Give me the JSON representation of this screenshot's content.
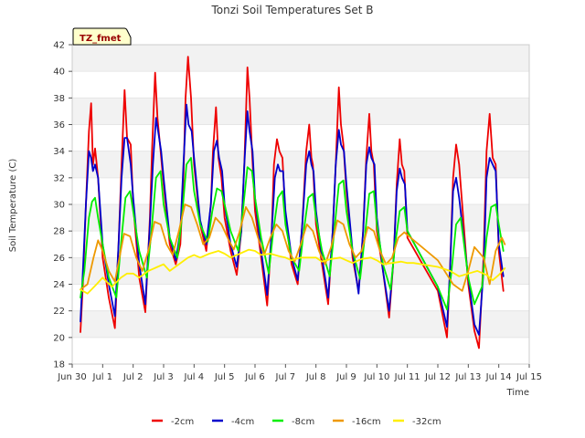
{
  "chart_data": {
    "type": "line",
    "title": "Tonzi Soil Temperatures Set B",
    "xlabel": "Time",
    "ylabel": "Soil Temperature (C)",
    "badge": "TZ_fmet",
    "xlim": [
      0,
      15
    ],
    "ylim": [
      18,
      42
    ],
    "grid": "alternating horizontal bands",
    "legend_position": "bottom",
    "x_tick_values": [
      0,
      1,
      2,
      3,
      4,
      5,
      6,
      7,
      8,
      9,
      10,
      11,
      12,
      13,
      14,
      15
    ],
    "x_tick_labels": [
      "Jun 30",
      "Jul 1",
      "Jul 2",
      "Jul 3",
      "Jul 4",
      "Jul 5",
      "Jul 6",
      "Jul 7",
      "Jul 8",
      "Jul 9",
      "Jul 10",
      "Jul 11",
      "Jul 12",
      "Jul 13",
      "Jul 14",
      "Jul 15"
    ],
    "y_ticks": [
      18,
      20,
      22,
      24,
      26,
      28,
      30,
      32,
      34,
      36,
      38,
      40,
      42
    ],
    "x_note": "x values are days counted from Jun 30 (tick 0)",
    "series": [
      {
        "name": "-2cm",
        "color": "#ee0000",
        "x": [
          0.27,
          0.35,
          0.45,
          0.55,
          0.62,
          0.68,
          0.75,
          0.85,
          1.0,
          1.2,
          1.4,
          1.52,
          1.62,
          1.72,
          1.8,
          1.92,
          2.0,
          2.2,
          2.4,
          2.55,
          2.62,
          2.72,
          2.8,
          2.9,
          3.0,
          3.2,
          3.4,
          3.55,
          3.65,
          3.72,
          3.8,
          3.9,
          4.0,
          4.2,
          4.4,
          4.55,
          4.62,
          4.72,
          4.8,
          4.9,
          5.0,
          5.2,
          5.4,
          5.55,
          5.65,
          5.75,
          5.82,
          5.9,
          6.0,
          6.2,
          6.4,
          6.55,
          6.62,
          6.72,
          6.8,
          6.9,
          7.0,
          7.2,
          7.4,
          7.55,
          7.68,
          7.78,
          7.85,
          7.9,
          8.0,
          8.2,
          8.4,
          8.55,
          8.65,
          8.75,
          8.82,
          8.9,
          9.0,
          9.2,
          9.4,
          9.55,
          9.65,
          9.75,
          9.82,
          9.9,
          10.0,
          10.2,
          10.4,
          10.55,
          10.65,
          10.75,
          10.82,
          10.9,
          11.0,
          12.0,
          12.3,
          12.4,
          12.5,
          12.6,
          12.7,
          13.0,
          13.2,
          13.35,
          13.5,
          13.6,
          13.7,
          13.8,
          13.9,
          14.0,
          14.15
        ],
        "y": [
          20.4,
          24.0,
          30.0,
          35.5,
          37.6,
          33.0,
          34.2,
          32.0,
          26.0,
          23.0,
          20.7,
          27.0,
          33.0,
          38.6,
          35.0,
          34.5,
          30.0,
          24.5,
          21.9,
          29.0,
          34.0,
          39.9,
          36.5,
          34.0,
          31.5,
          27.0,
          25.5,
          27.0,
          32.0,
          38.0,
          41.1,
          38.0,
          33.0,
          28.5,
          26.5,
          30.0,
          34.0,
          37.3,
          33.5,
          32.0,
          29.0,
          26.5,
          24.7,
          28.0,
          33.0,
          40.3,
          38.0,
          34.0,
          29.5,
          26.0,
          22.4,
          28.0,
          33.0,
          34.9,
          34.0,
          33.5,
          29.0,
          25.5,
          24.0,
          28.5,
          34.0,
          36.0,
          33.5,
          33.0,
          28.5,
          25.5,
          22.5,
          28.0,
          33.0,
          38.8,
          36.0,
          34.5,
          31.0,
          26.0,
          23.5,
          28.0,
          33.5,
          36.8,
          34.0,
          33.0,
          28.0,
          25.0,
          21.5,
          26.0,
          31.5,
          34.9,
          33.0,
          32.5,
          27.5,
          23.5,
          20.0,
          25.0,
          32.0,
          34.5,
          33.0,
          24.0,
          20.5,
          19.2,
          26.0,
          34.0,
          36.8,
          33.5,
          33.0,
          26.5,
          23.5
        ]
      },
      {
        "name": "-4cm",
        "color": "#0000cc",
        "x": [
          0.27,
          0.35,
          0.45,
          0.55,
          0.62,
          0.68,
          0.75,
          0.85,
          1.0,
          1.2,
          1.4,
          1.52,
          1.62,
          1.72,
          1.8,
          1.92,
          2.0,
          2.2,
          2.4,
          2.55,
          2.65,
          2.75,
          2.82,
          2.92,
          3.0,
          3.2,
          3.4,
          3.55,
          3.65,
          3.75,
          3.82,
          3.92,
          4.0,
          4.2,
          4.4,
          4.55,
          4.65,
          4.75,
          4.82,
          4.92,
          5.0,
          5.2,
          5.4,
          5.55,
          5.65,
          5.75,
          5.82,
          5.92,
          6.0,
          6.2,
          6.4,
          6.55,
          6.65,
          6.75,
          6.82,
          6.92,
          7.0,
          7.2,
          7.4,
          7.55,
          7.68,
          7.78,
          7.85,
          7.92,
          8.0,
          8.2,
          8.4,
          8.55,
          8.65,
          8.75,
          8.82,
          8.92,
          9.0,
          9.2,
          9.4,
          9.55,
          9.65,
          9.75,
          9.82,
          9.92,
          10.0,
          10.2,
          10.4,
          10.55,
          10.65,
          10.75,
          10.82,
          10.92,
          11.0,
          12.0,
          12.3,
          12.4,
          12.5,
          12.6,
          12.7,
          13.0,
          13.2,
          13.35,
          13.5,
          13.6,
          13.7,
          13.8,
          13.9,
          14.0,
          14.15
        ],
        "y": [
          21.2,
          25.0,
          30.0,
          34.0,
          33.5,
          32.5,
          33.0,
          32.0,
          27.0,
          24.0,
          21.6,
          27.0,
          32.0,
          35.0,
          35.0,
          33.0,
          30.5,
          25.5,
          22.5,
          28.5,
          33.0,
          36.5,
          35.5,
          34.0,
          32.0,
          27.5,
          25.8,
          28.0,
          33.0,
          37.5,
          36.0,
          35.5,
          33.5,
          28.8,
          27.0,
          30.0,
          34.0,
          34.8,
          33.5,
          32.5,
          30.0,
          27.0,
          25.3,
          28.0,
          33.0,
          37.0,
          35.5,
          34.0,
          30.5,
          26.5,
          23.2,
          28.0,
          32.0,
          33.0,
          32.5,
          32.5,
          29.5,
          26.0,
          24.3,
          28.5,
          33.0,
          34.0,
          33.0,
          32.5,
          29.5,
          26.0,
          23.0,
          28.0,
          33.0,
          35.6,
          34.5,
          34.0,
          31.5,
          26.5,
          23.3,
          28.0,
          33.0,
          34.3,
          33.5,
          33.0,
          29.0,
          25.0,
          22.0,
          26.0,
          31.0,
          32.7,
          32.0,
          31.5,
          28.0,
          23.8,
          20.8,
          25.0,
          31.0,
          32.0,
          30.5,
          24.5,
          21.0,
          20.2,
          25.0,
          32.0,
          33.5,
          33.0,
          32.5,
          27.0,
          24.6
        ]
      },
      {
        "name": "-8cm",
        "color": "#00ee00",
        "x": [
          0.27,
          0.4,
          0.55,
          0.65,
          0.75,
          0.85,
          1.0,
          1.2,
          1.45,
          1.6,
          1.75,
          1.9,
          2.0,
          2.2,
          2.45,
          2.6,
          2.75,
          2.9,
          3.0,
          3.2,
          3.45,
          3.6,
          3.75,
          3.9,
          4.0,
          4.2,
          4.45,
          4.6,
          4.75,
          4.9,
          5.0,
          5.2,
          5.45,
          5.6,
          5.75,
          5.9,
          6.0,
          6.2,
          6.45,
          6.6,
          6.75,
          6.9,
          7.0,
          7.2,
          7.45,
          7.6,
          7.75,
          7.9,
          8.0,
          8.2,
          8.45,
          8.6,
          8.75,
          8.9,
          9.0,
          9.2,
          9.45,
          9.6,
          9.75,
          9.9,
          10.0,
          10.2,
          10.45,
          10.6,
          10.75,
          10.9,
          11.0,
          12.0,
          12.3,
          12.45,
          12.6,
          12.75,
          13.0,
          13.2,
          13.45,
          13.6,
          13.75,
          13.9,
          14.0,
          14.15
        ],
        "y": [
          23.0,
          25.0,
          29.0,
          30.2,
          30.5,
          29.0,
          27.0,
          24.5,
          23.0,
          27.0,
          30.5,
          31.0,
          29.5,
          26.5,
          24.5,
          28.0,
          32.0,
          32.5,
          30.0,
          27.5,
          26.0,
          29.0,
          33.0,
          33.5,
          31.0,
          28.5,
          27.2,
          29.5,
          31.2,
          31.0,
          30.0,
          28.0,
          26.5,
          29.5,
          32.8,
          32.5,
          30.5,
          27.5,
          24.8,
          28.0,
          30.5,
          31.0,
          28.5,
          26.0,
          25.0,
          28.0,
          30.5,
          30.8,
          29.0,
          26.5,
          24.6,
          28.0,
          31.5,
          31.8,
          29.5,
          26.5,
          24.4,
          27.5,
          30.8,
          31.0,
          28.5,
          25.5,
          23.6,
          27.0,
          29.5,
          29.8,
          28.0,
          23.8,
          22.1,
          25.0,
          28.5,
          29.0,
          24.5,
          22.5,
          23.8,
          27.5,
          29.8,
          30.0,
          28.5,
          26.5
        ]
      },
      {
        "name": "-16cm",
        "color": "#ee9900",
        "x": [
          0.27,
          0.5,
          0.7,
          0.85,
          1.0,
          1.2,
          1.4,
          1.55,
          1.7,
          1.9,
          2.1,
          2.3,
          2.5,
          2.7,
          2.9,
          3.1,
          3.3,
          3.5,
          3.7,
          3.9,
          4.1,
          4.3,
          4.5,
          4.7,
          4.9,
          5.1,
          5.3,
          5.5,
          5.7,
          5.9,
          6.1,
          6.3,
          6.5,
          6.7,
          6.9,
          7.1,
          7.3,
          7.5,
          7.7,
          7.9,
          8.1,
          8.3,
          8.5,
          8.7,
          8.9,
          9.1,
          9.3,
          9.5,
          9.7,
          9.9,
          10.1,
          10.3,
          10.5,
          10.7,
          10.9,
          11.0,
          12.0,
          12.5,
          12.8,
          13.0,
          13.2,
          13.5,
          13.7,
          13.9,
          14.1,
          14.2
        ],
        "y": [
          23.6,
          24.0,
          26.0,
          27.3,
          26.5,
          25.0,
          24.2,
          26.0,
          27.8,
          27.6,
          26.0,
          25.0,
          26.5,
          28.7,
          28.5,
          27.0,
          26.2,
          28.0,
          30.0,
          29.8,
          28.5,
          27.0,
          27.5,
          29.0,
          28.5,
          27.5,
          26.6,
          28.0,
          29.8,
          29.0,
          27.5,
          26.2,
          27.5,
          28.5,
          28.0,
          26.5,
          25.7,
          27.0,
          28.5,
          28.0,
          26.5,
          25.5,
          26.8,
          28.8,
          28.5,
          27.0,
          26.0,
          26.5,
          28.3,
          28.0,
          26.5,
          25.5,
          26.0,
          27.5,
          27.9,
          27.7,
          25.8,
          24.0,
          23.5,
          25.0,
          26.8,
          26.0,
          24.0,
          26.5,
          27.5,
          27.0
        ]
      },
      {
        "name": "-32cm",
        "color": "#ffee00",
        "x": [
          0.27,
          0.5,
          0.8,
          1.0,
          1.3,
          1.6,
          1.8,
          2.0,
          2.2,
          2.5,
          2.8,
          3.0,
          3.2,
          3.5,
          3.8,
          4.0,
          4.2,
          4.5,
          4.8,
          5.0,
          5.2,
          5.5,
          5.8,
          6.0,
          6.2,
          6.5,
          6.8,
          7.0,
          7.2,
          7.5,
          7.8,
          8.0,
          8.2,
          8.5,
          8.8,
          9.0,
          9.2,
          9.5,
          9.8,
          10.0,
          10.2,
          10.5,
          10.8,
          11.0,
          11.2,
          12.0,
          12.4,
          12.7,
          13.0,
          13.3,
          13.6,
          13.8,
          14.0,
          14.2
        ],
        "y": [
          23.6,
          23.3,
          24.0,
          24.5,
          23.8,
          24.5,
          24.8,
          24.8,
          24.5,
          25.0,
          25.3,
          25.5,
          25.0,
          25.5,
          26.0,
          26.2,
          26.0,
          26.3,
          26.5,
          26.3,
          26.0,
          26.3,
          26.6,
          26.5,
          26.2,
          26.3,
          26.1,
          26.0,
          25.8,
          26.0,
          26.0,
          26.0,
          25.7,
          25.9,
          26.0,
          25.8,
          25.6,
          25.9,
          26.0,
          25.8,
          25.5,
          25.6,
          25.7,
          25.6,
          25.6,
          25.3,
          25.0,
          24.6,
          24.8,
          25.0,
          24.7,
          24.3,
          24.7,
          25.2
        ]
      }
    ]
  }
}
